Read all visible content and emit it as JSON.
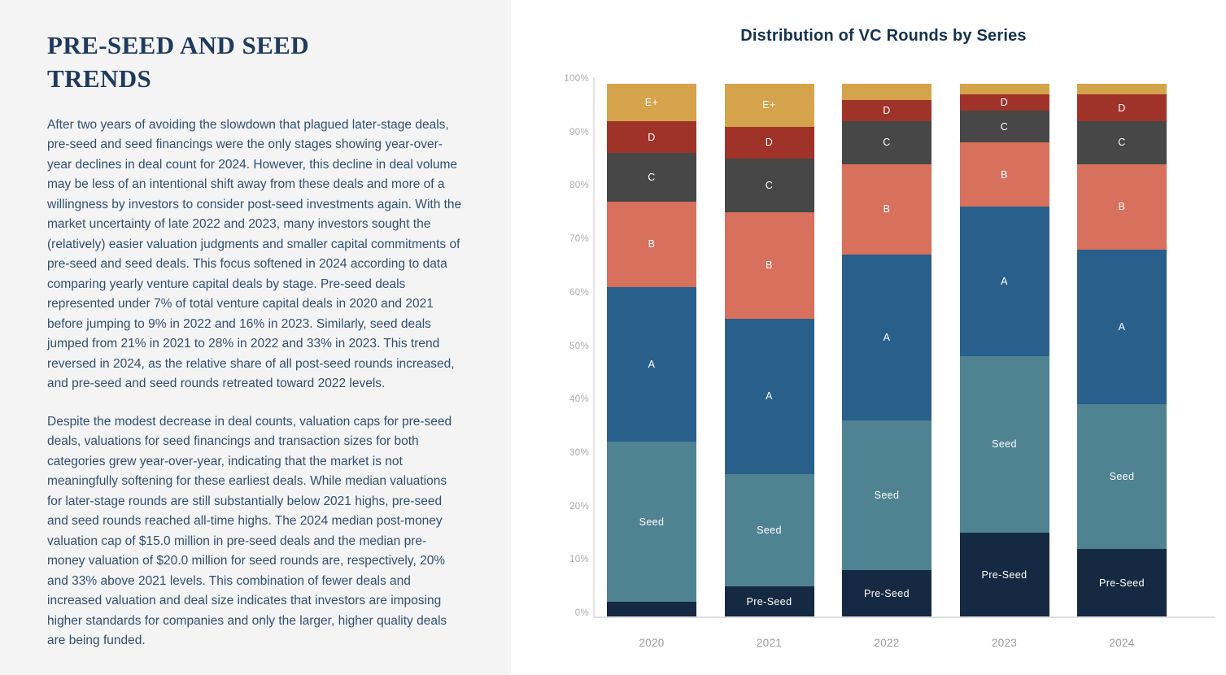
{
  "document": {
    "heading": "PRE-SEED AND SEED TRENDS",
    "paragraphs": [
      "After two years of avoiding the slowdown that plagued later-stage deals, pre-seed and seed financings were the only stages showing year-over-year declines in deal count for 2024. However, this decline in deal volume may be less of an intentional shift away from these deals and more of a willingness by investors to consider post-seed investments again. With the market uncertainty of late 2022 and 2023, many investors sought the (relatively) easier valuation judgments and smaller capital commitments of pre-seed and seed deals. This focus softened in 2024 according to data comparing yearly venture capital deals by stage. Pre-seed deals represented under 7% of total venture capital deals in 2020 and 2021 before jumping to 9% in 2022 and 16% in 2023. Similarly, seed deals jumped from 21% in 2021 to 28% in 2022 and 33% in 2023. This trend reversed in 2024, as the relative share of all post-seed rounds increased, and pre-seed and seed rounds retreated toward 2022 levels.",
      "Despite the modest decrease in deal counts, valuation caps for pre-seed deals, valuations for seed financings and transaction sizes for both categories grew year-over-year, indicating that the market is not meaningfully softening for these earliest deals. While median valuations for later-stage rounds are still substantially below 2021 highs, pre-seed and seed rounds reached all-time highs. The 2024 median post-money valuation cap of $15.0 million in pre-seed deals and the median pre-money valuation of $20.0 million for seed rounds are, respectively, 20% and 33% above 2021 levels. This combination of fewer deals and increased valuation and deal size indicates that investors are imposing higher standards for companies and only the larger, higher quality deals are being funded."
    ]
  },
  "chart_data": {
    "type": "bar",
    "subtype": "stacked-100-percent",
    "title": "Distribution of VC Rounds by Series",
    "xlabel": "",
    "ylabel": "",
    "ylim": [
      0,
      100
    ],
    "grid": false,
    "legend": "none (segments labeled inline)",
    "categories": [
      "2020",
      "2021",
      "2022",
      "2023",
      "2024"
    ],
    "y_ticks": [
      "100%",
      "90%",
      "80%",
      "70%",
      "60%",
      "50%",
      "40%",
      "30%",
      "20%",
      "10%",
      "0%"
    ],
    "series": [
      {
        "name": "Pre-Seed",
        "values": [
          3,
          6,
          9,
          16,
          13
        ],
        "labeled": [
          false,
          true,
          true,
          true,
          true
        ]
      },
      {
        "name": "Seed",
        "values": [
          30,
          21,
          28,
          33,
          27
        ],
        "labeled": [
          true,
          true,
          true,
          true,
          true
        ]
      },
      {
        "name": "A",
        "values": [
          29,
          29,
          31,
          28,
          29
        ],
        "labeled": [
          true,
          true,
          true,
          true,
          true
        ]
      },
      {
        "name": "B",
        "values": [
          16,
          20,
          17,
          12,
          16
        ],
        "labeled": [
          true,
          true,
          true,
          true,
          true
        ]
      },
      {
        "name": "C",
        "values": [
          9,
          10,
          8,
          6,
          8
        ],
        "labeled": [
          true,
          true,
          true,
          true,
          true
        ]
      },
      {
        "name": "D",
        "values": [
          6,
          6,
          4,
          3,
          5
        ],
        "labeled": [
          true,
          true,
          true,
          true,
          true
        ]
      },
      {
        "name": "E+",
        "values": [
          7,
          8,
          3,
          2,
          2
        ],
        "labeled": [
          true,
          true,
          false,
          false,
          false
        ]
      }
    ],
    "colors": {
      "Pre-Seed": "#152a42",
      "Seed": "#4f8392",
      "A": "#29608b",
      "B": "#d7705c",
      "C": "#474747",
      "D": "#a03329",
      "E+": "#d4a34c"
    },
    "axis_label_color": "#acacac",
    "title_color": "#16314f"
  }
}
